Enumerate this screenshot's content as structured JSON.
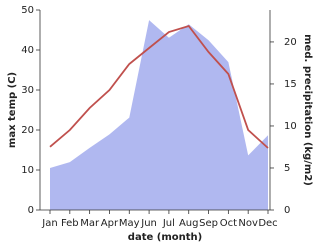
{
  "chart_data": {
    "type": "area-line",
    "xlabel": "date (month)",
    "ylabel": "max temp (C)",
    "y2label": "med. precipitation (kg/m2)",
    "categories": [
      "Jan",
      "Feb",
      "Mar",
      "Apr",
      "May",
      "Jun",
      "Jul",
      "Aug",
      "Sep",
      "Oct",
      "Nov",
      "Dec"
    ],
    "series": [
      {
        "color": "#c0504d",
        "values": [
          15.8,
          20,
          25.5,
          30,
          36.5,
          40.5,
          44.5,
          46,
          39.5,
          34,
          20,
          15.5
        ]
      },
      {
        "color": "#b0b8f0",
        "axis": "y2",
        "values": [
          5,
          5.7,
          7.4,
          9,
          11,
          22.6,
          20.5,
          22.1,
          20.2,
          17.6,
          6.5,
          8.9
        ]
      }
    ],
    "ylim": [
      0,
      50
    ],
    "yticks": [
      0,
      10,
      20,
      30,
      40,
      50
    ],
    "y2lim": [
      0,
      23.8
    ],
    "y2ticks": [
      0,
      5,
      10,
      15,
      20
    ]
  }
}
